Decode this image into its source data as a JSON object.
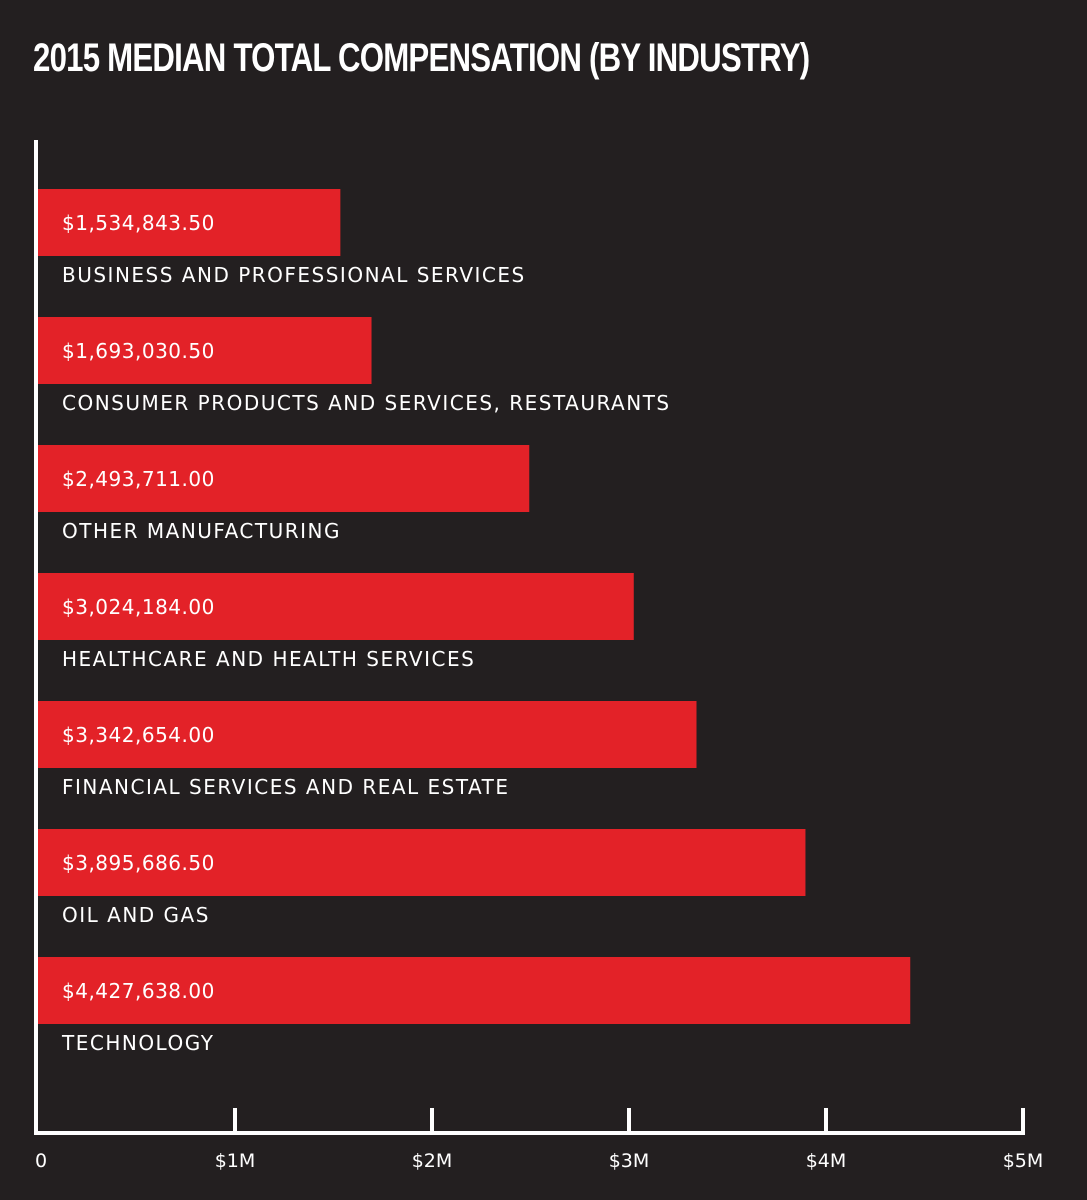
{
  "chart_data": {
    "type": "bar",
    "orientation": "horizontal",
    "title": "2015 MEDIAN TOTAL COMPENSATION (BY INDUSTRY)",
    "categories": [
      "BUSINESS AND PROFESSIONAL SERVICES",
      "CONSUMER PRODUCTS AND SERVICES, RESTAURANTS",
      "OTHER MANUFACTURING",
      "HEALTHCARE AND HEALTH SERVICES",
      "FINANCIAL SERVICES AND REAL ESTATE",
      "OIL AND GAS",
      "TECHNOLOGY"
    ],
    "values": [
      1534843.5,
      1693030.5,
      2493711.0,
      3024184.0,
      3342654.0,
      3895686.5,
      4427638.0
    ],
    "value_labels": [
      "$1,534,843.50",
      "$1,693,030.50",
      "$2,493,711.00",
      "$3,024,184.00",
      "$3,342,654.00",
      "$3,895,686.50",
      "$4,427,638.00"
    ],
    "xlim": [
      0,
      5000000
    ],
    "x_ticks": [
      0,
      1000000,
      2000000,
      3000000,
      4000000,
      5000000
    ],
    "x_tick_labels": [
      "0",
      "$1M",
      "$2M",
      "$3M",
      "$4M",
      "$5M"
    ],
    "xlabel": "",
    "ylabel": "",
    "grid": false,
    "legend": "none"
  },
  "colors": {
    "background": "#231f20",
    "bar": "#e32228",
    "axis": "#ffffff",
    "text": "#ffffff"
  }
}
